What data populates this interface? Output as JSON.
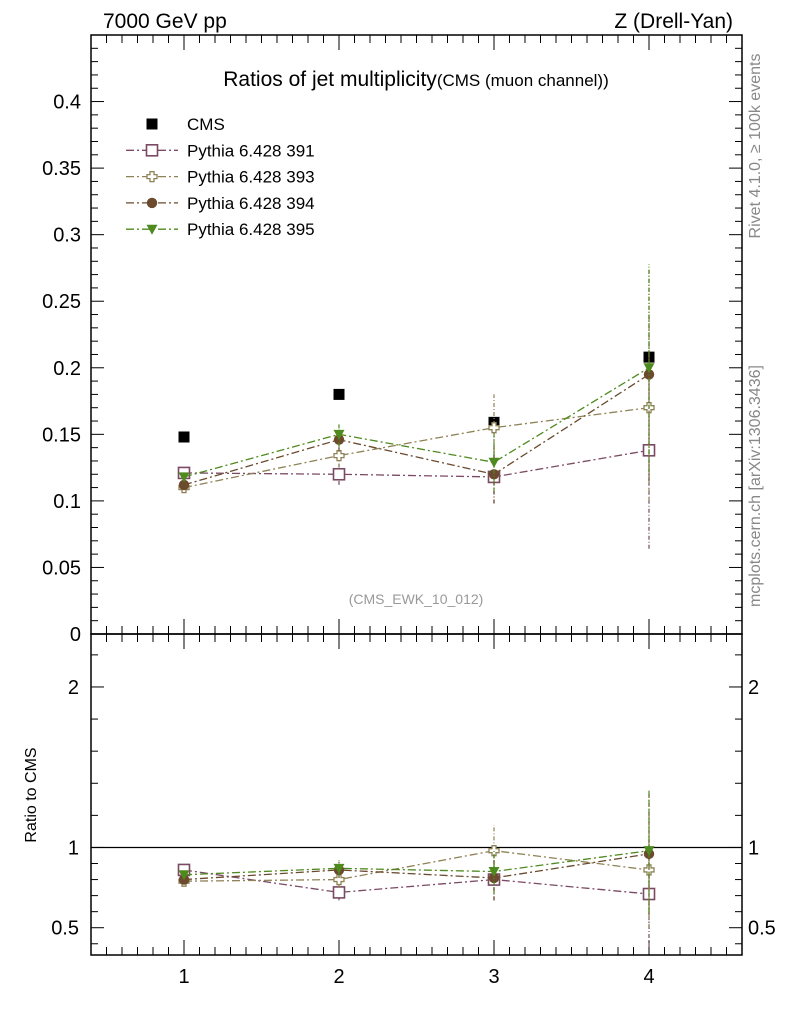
{
  "header": {
    "left": "7000 GeV pp",
    "right": "Z (Drell-Yan)"
  },
  "side_labels": {
    "rivet": "Rivet 4.1.0, ≥ 100k events",
    "source": "mcplots.cern.ch [arXiv:1306.3436]"
  },
  "chart_data": [
    {
      "type": "scatter",
      "title": "Ratios of jet multiplicity",
      "subtitle": "(CMS (muon channel))",
      "watermark": "(CMS_EWK_10_012)",
      "xlabel": "",
      "ylabel": "",
      "xlim": [
        0.4,
        4.6
      ],
      "ylim": [
        0,
        0.45
      ],
      "yticks": [
        0,
        0.05,
        0.1,
        0.15,
        0.2,
        0.25,
        0.3,
        0.35,
        0.4
      ],
      "ytick_labels": [
        "0",
        "0.05",
        "0.1",
        "0.15",
        "0.2",
        "0.25",
        "0.3",
        "0.35",
        "0.4"
      ],
      "legend_position": "top-left",
      "series": [
        {
          "name": "CMS",
          "marker": "square-filled",
          "color": "#000000",
          "x": [
            1,
            2,
            3,
            4
          ],
          "y": [
            0.148,
            0.18,
            0.159,
            0.208
          ],
          "err": [
            0,
            0,
            0,
            0
          ]
        },
        {
          "name": "Pythia 6.428 391",
          "marker": "square-open",
          "color": "#7a4a63",
          "x": [
            1,
            2,
            3,
            4
          ],
          "y": [
            0.121,
            0.12,
            0.118,
            0.138
          ],
          "err": [
            0.003,
            0.008,
            0.02,
            0.074
          ]
        },
        {
          "name": "Pythia 6.428 393",
          "marker": "cross-open",
          "color": "#8f8256",
          "x": [
            1,
            2,
            3,
            4
          ],
          "y": [
            0.11,
            0.134,
            0.155,
            0.17
          ],
          "err": [
            0.003,
            0.009,
            0.025,
            0.07
          ]
        },
        {
          "name": "Pythia 6.428 394",
          "marker": "circle-filled",
          "color": "#6b4a2e",
          "x": [
            1,
            2,
            3,
            4
          ],
          "y": [
            0.112,
            0.146,
            0.12,
            0.195
          ],
          "err": [
            0.003,
            0.009,
            0.022,
            0.08
          ]
        },
        {
          "name": "Pythia 6.428 395",
          "marker": "triangle-down-filled",
          "color": "#4e8a1e",
          "x": [
            1,
            2,
            3,
            4
          ],
          "y": [
            0.118,
            0.15,
            0.129,
            0.2
          ],
          "err": [
            0.003,
            0.009,
            0.022,
            0.078
          ]
        }
      ]
    },
    {
      "type": "scatter",
      "title": "",
      "xlabel": "",
      "ylabel": "Ratio to CMS",
      "xlim": [
        0.4,
        4.6
      ],
      "ylim": [
        0.33,
        2.33
      ],
      "yticks": [
        0.5,
        1,
        2
      ],
      "ytick_labels": [
        "0.5",
        "1",
        "2"
      ],
      "xticks": [
        1,
        2,
        3,
        4
      ],
      "xtick_labels": [
        "1",
        "2",
        "3",
        "4"
      ],
      "reference_line": 1,
      "series": [
        {
          "name": "Pythia 6.428 391",
          "marker": "square-open",
          "color": "#7a4a63",
          "x": [
            1,
            2,
            3,
            4
          ],
          "y": [
            0.86,
            0.72,
            0.8,
            0.71
          ],
          "err": [
            0.02,
            0.05,
            0.13,
            0.33
          ]
        },
        {
          "name": "Pythia 6.428 393",
          "marker": "cross-open",
          "color": "#8f8256",
          "x": [
            1,
            2,
            3,
            4
          ],
          "y": [
            0.79,
            0.8,
            0.98,
            0.86
          ],
          "err": [
            0.02,
            0.05,
            0.16,
            0.36
          ]
        },
        {
          "name": "Pythia 6.428 394",
          "marker": "circle-filled",
          "color": "#6b4a2e",
          "x": [
            1,
            2,
            3,
            4
          ],
          "y": [
            0.8,
            0.86,
            0.81,
            0.96
          ],
          "err": [
            0.02,
            0.05,
            0.14,
            0.38
          ]
        },
        {
          "name": "Pythia 6.428 395",
          "marker": "triangle-down-filled",
          "color": "#4e8a1e",
          "x": [
            1,
            2,
            3,
            4
          ],
          "y": [
            0.83,
            0.87,
            0.85,
            0.98
          ],
          "err": [
            0.02,
            0.05,
            0.14,
            0.38
          ]
        }
      ]
    }
  ]
}
